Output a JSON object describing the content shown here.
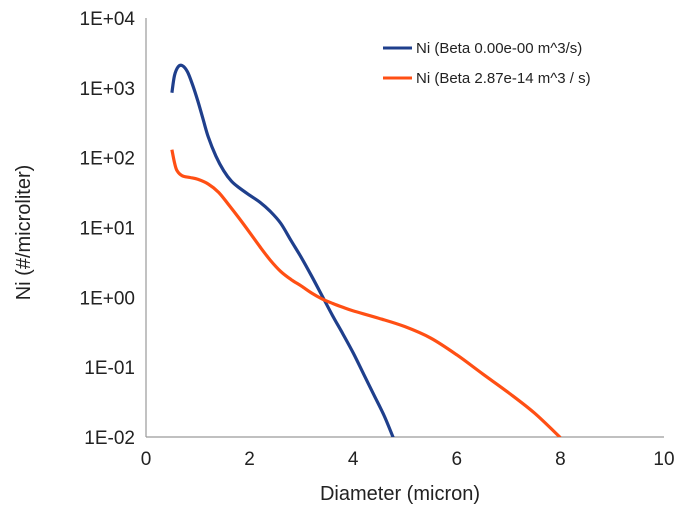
{
  "chart_data": {
    "type": "line",
    "title": "",
    "xlabel": "Diameter (micron)",
    "ylabel": "Ni (#/microliter)",
    "x_scale": "linear",
    "y_scale": "log",
    "xlim": [
      0,
      10
    ],
    "ylim": [
      0.01,
      10000
    ],
    "x_ticks": [
      0,
      2,
      4,
      6,
      8,
      10
    ],
    "x_tick_labels": [
      "0",
      "2",
      "4",
      "6",
      "8",
      "10"
    ],
    "y_ticks": [
      0.01,
      0.1,
      1,
      10,
      100,
      1000,
      10000
    ],
    "y_tick_labels": [
      "1E-02",
      "1E-01",
      "1E+00",
      "1E+01",
      "1E+02",
      "1E+03",
      "1E+04"
    ],
    "grid": false,
    "legend_position": "top-right",
    "series": [
      {
        "name": "Ni (Beta 0.00e-00 m^3/s)",
        "color": "#1f3f8c",
        "x": [
          0.5,
          0.55,
          0.62,
          0.7,
          0.8,
          0.9,
          1.0,
          1.1,
          1.2,
          1.35,
          1.5,
          1.65,
          1.8,
          2.0,
          2.2,
          2.4,
          2.6,
          2.8,
          3.0,
          3.2,
          3.4,
          3.6,
          3.8,
          4.0,
          4.2,
          4.4,
          4.6,
          4.78
        ],
        "y": [
          850,
          1500,
          2000,
          2080,
          1700,
          1100,
          650,
          360,
          200,
          105,
          65,
          46,
          37,
          29,
          23,
          17,
          11.5,
          6.5,
          3.7,
          2.0,
          1.05,
          0.55,
          0.3,
          0.16,
          0.08,
          0.04,
          0.02,
          0.0095
        ]
      },
      {
        "name": "Ni (Beta 2.87e-14 m^3 / s)",
        "color": "#ff4f14",
        "x": [
          0.5,
          0.55,
          0.6,
          0.7,
          0.85,
          1.0,
          1.2,
          1.4,
          1.6,
          1.8,
          2.0,
          2.2,
          2.4,
          2.6,
          2.8,
          3.0,
          3.2,
          3.4,
          3.6,
          3.8,
          4.0,
          4.5,
          5.0,
          5.5,
          6.0,
          6.5,
          7.0,
          7.5,
          8.0
        ],
        "y": [
          130,
          85,
          65,
          55,
          52,
          49,
          42,
          32,
          21,
          13.5,
          8.5,
          5.3,
          3.4,
          2.35,
          1.8,
          1.45,
          1.15,
          0.95,
          0.82,
          0.72,
          0.64,
          0.5,
          0.38,
          0.26,
          0.15,
          0.08,
          0.043,
          0.022,
          0.0098
        ]
      }
    ]
  }
}
